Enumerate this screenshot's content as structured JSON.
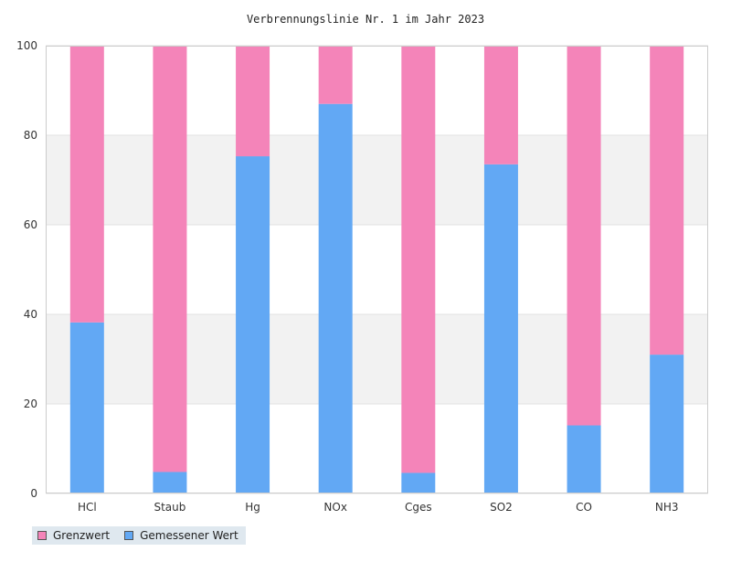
{
  "chart_data": {
    "type": "bar",
    "stacked": true,
    "title": "Verbrennungslinie Nr. 1 im Jahr 2023",
    "categories": [
      "HCl",
      "Staub",
      "Hg",
      "NOx",
      "Cges",
      "SO2",
      "CO",
      "NH3"
    ],
    "series": [
      {
        "name": "Grenzwert",
        "color": "#f484b9",
        "values": [
          61.8,
          95.2,
          24.7,
          13.0,
          95.4,
          26.5,
          84.8,
          69.0
        ]
      },
      {
        "name": "Gemessener Wert",
        "color": "#62a8f4",
        "values": [
          38.2,
          4.8,
          75.3,
          87.0,
          4.6,
          73.5,
          15.2,
          31.0
        ]
      }
    ],
    "ylim": [
      0,
      100
    ],
    "yticks": [
      0,
      20,
      40,
      60,
      80,
      100
    ],
    "grid": true,
    "legend_position": "bottom-left"
  }
}
